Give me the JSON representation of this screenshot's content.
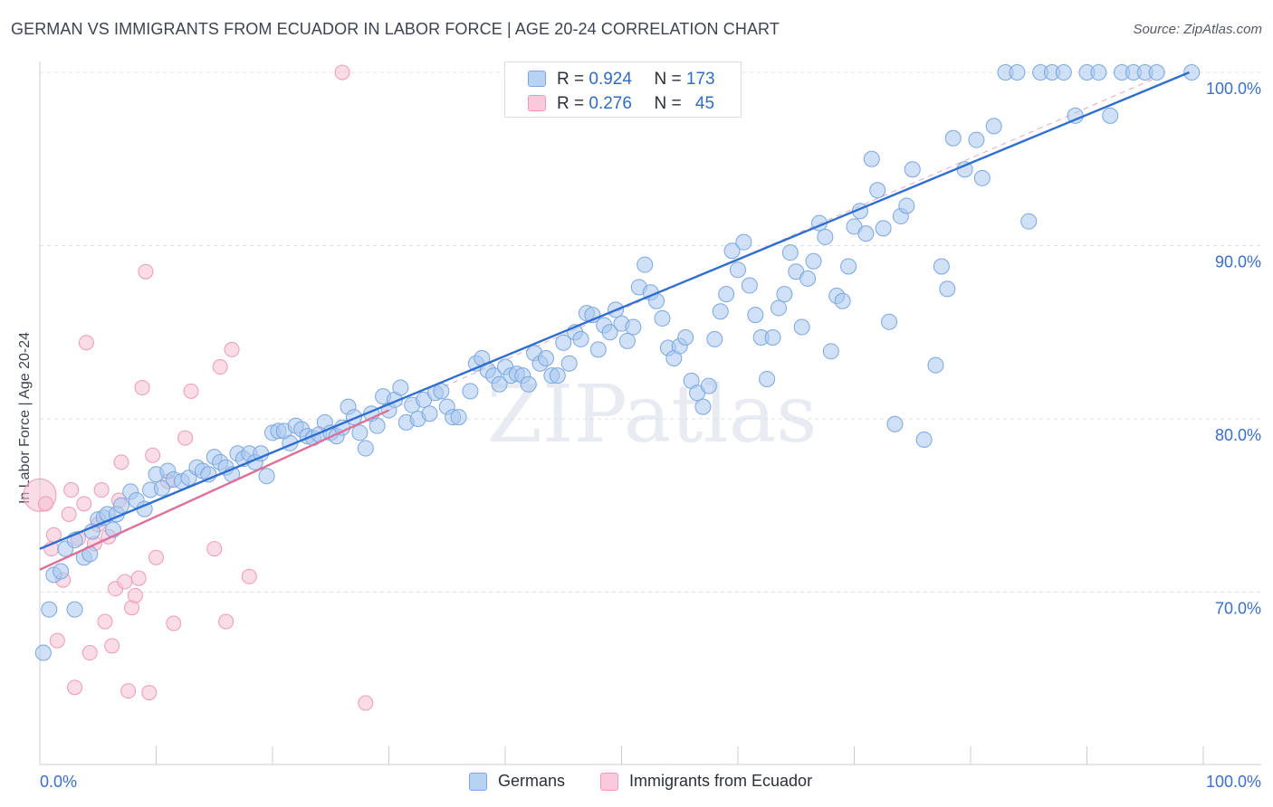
{
  "chart_title": "GERMAN VS IMMIGRANTS FROM ECUADOR IN LABOR FORCE | AGE 20-24 CORRELATION CHART",
  "source_text": "Source: ZipAtlas.com",
  "watermark": "ZIPatlas",
  "legend": {
    "r_label": "R =",
    "n_label": "N =",
    "entries": [
      {
        "r": "0.924",
        "n": "173"
      },
      {
        "r": "0.276",
        "n": "45"
      }
    ]
  },
  "colors": {
    "germans_fill": "#a9c8f0",
    "germans_stroke": "#7aa7e0",
    "germans_line": "#2f6ed1",
    "ecuador_fill": "#f6bfd1",
    "ecuador_stroke": "#ee9ab6",
    "ecuador_line": "#e06f98",
    "tick_label": "#3a6fc9",
    "grid": "#dde0e6"
  },
  "chart_data": {
    "type": "scatter",
    "title": "GERMAN VS IMMIGRANTS FROM ECUADOR IN LABOR FORCE | AGE 20-24 CORRELATION CHART",
    "xlabel": "",
    "ylabel": "In Labor Force | Age 20-24",
    "xlim": [
      0,
      100
    ],
    "ylim": [
      61,
      101
    ],
    "x_tick_labels": [
      "0.0%",
      "100.0%"
    ],
    "y_ticks": [
      70,
      80,
      90,
      100
    ],
    "y_tick_labels": [
      "70.0%",
      "80.0%",
      "90.0%",
      "100.0%"
    ],
    "grid": true,
    "legend_position": "top-center",
    "series": [
      {
        "name": "Germans",
        "r": 0.924,
        "n": 173,
        "trend": [
          [
            0,
            72.5
          ],
          [
            98.8,
            100
          ]
        ],
        "points": [
          [
            0.3,
            66.5
          ],
          [
            0.8,
            69.0
          ],
          [
            1.2,
            71.0
          ],
          [
            1.8,
            71.2
          ],
          [
            2.2,
            72.5
          ],
          [
            3.0,
            73.0
          ],
          [
            3.0,
            69.0
          ],
          [
            3.8,
            72.0
          ],
          [
            4.3,
            72.2
          ],
          [
            4.5,
            73.5
          ],
          [
            5.0,
            74.2
          ],
          [
            5.5,
            74.3
          ],
          [
            5.8,
            74.5
          ],
          [
            6.3,
            73.6
          ],
          [
            6.6,
            74.5
          ],
          [
            7.0,
            75.0
          ],
          [
            7.8,
            75.8
          ],
          [
            8.3,
            75.3
          ],
          [
            9.0,
            74.8
          ],
          [
            9.5,
            75.9
          ],
          [
            10.0,
            76.8
          ],
          [
            10.5,
            76.0
          ],
          [
            11.0,
            77.0
          ],
          [
            11.5,
            76.5
          ],
          [
            12.2,
            76.4
          ],
          [
            12.8,
            76.6
          ],
          [
            13.5,
            77.2
          ],
          [
            14.0,
            77.0
          ],
          [
            14.5,
            76.8
          ],
          [
            15.0,
            77.8
          ],
          [
            15.5,
            77.5
          ],
          [
            16.0,
            77.2
          ],
          [
            16.5,
            76.8
          ],
          [
            17.0,
            78.0
          ],
          [
            17.5,
            77.7
          ],
          [
            18.0,
            78.0
          ],
          [
            18.5,
            77.5
          ],
          [
            19.0,
            78.0
          ],
          [
            19.5,
            76.7
          ],
          [
            20.0,
            79.2
          ],
          [
            20.5,
            79.3
          ],
          [
            21.0,
            79.3
          ],
          [
            21.5,
            78.6
          ],
          [
            22.0,
            79.6
          ],
          [
            22.5,
            79.4
          ],
          [
            23.0,
            79.0
          ],
          [
            23.5,
            78.9
          ],
          [
            24.0,
            79.1
          ],
          [
            24.5,
            79.8
          ],
          [
            25.0,
            79.2
          ],
          [
            25.5,
            79.0
          ],
          [
            26.0,
            79.5
          ],
          [
            26.5,
            80.7
          ],
          [
            27.0,
            80.1
          ],
          [
            27.5,
            79.2
          ],
          [
            28.0,
            78.3
          ],
          [
            28.5,
            80.3
          ],
          [
            29.0,
            79.6
          ],
          [
            29.5,
            81.3
          ],
          [
            30.0,
            80.5
          ],
          [
            30.5,
            81.1
          ],
          [
            31.0,
            81.8
          ],
          [
            31.5,
            79.8
          ],
          [
            32.0,
            80.8
          ],
          [
            32.5,
            80.0
          ],
          [
            33.0,
            81.1
          ],
          [
            33.5,
            80.3
          ],
          [
            34.0,
            81.5
          ],
          [
            34.5,
            81.6
          ],
          [
            35.0,
            80.7
          ],
          [
            35.5,
            80.1
          ],
          [
            36.0,
            80.1
          ],
          [
            37.0,
            81.6
          ],
          [
            37.5,
            83.2
          ],
          [
            38.0,
            83.5
          ],
          [
            38.5,
            82.8
          ],
          [
            39.0,
            82.5
          ],
          [
            39.5,
            82.0
          ],
          [
            40.0,
            83.0
          ],
          [
            40.5,
            82.5
          ],
          [
            41.0,
            82.6
          ],
          [
            41.5,
            82.5
          ],
          [
            42.0,
            82.0
          ],
          [
            42.5,
            83.8
          ],
          [
            43.0,
            83.2
          ],
          [
            43.5,
            83.5
          ],
          [
            44.0,
            82.5
          ],
          [
            44.5,
            82.5
          ],
          [
            45.0,
            84.4
          ],
          [
            45.5,
            83.2
          ],
          [
            46.0,
            85.0
          ],
          [
            46.5,
            84.6
          ],
          [
            47.0,
            86.1
          ],
          [
            47.5,
            86.0
          ],
          [
            48.0,
            84.0
          ],
          [
            48.5,
            85.4
          ],
          [
            49.0,
            85.0
          ],
          [
            49.5,
            86.3
          ],
          [
            50.0,
            85.5
          ],
          [
            50.5,
            84.5
          ],
          [
            51.0,
            85.3
          ],
          [
            51.5,
            87.6
          ],
          [
            52.0,
            88.9
          ],
          [
            52.5,
            87.3
          ],
          [
            53.0,
            86.8
          ],
          [
            53.5,
            85.8
          ],
          [
            54.0,
            84.1
          ],
          [
            54.5,
            83.5
          ],
          [
            55.0,
            84.2
          ],
          [
            55.5,
            84.7
          ],
          [
            56.0,
            82.2
          ],
          [
            56.5,
            81.5
          ],
          [
            57.0,
            80.7
          ],
          [
            57.5,
            81.9
          ],
          [
            58.0,
            84.6
          ],
          [
            58.5,
            86.2
          ],
          [
            59.0,
            87.2
          ],
          [
            59.5,
            89.7
          ],
          [
            60.0,
            88.6
          ],
          [
            60.5,
            90.2
          ],
          [
            61.0,
            87.7
          ],
          [
            61.5,
            86.0
          ],
          [
            62.0,
            84.7
          ],
          [
            62.5,
            82.3
          ],
          [
            63.0,
            84.7
          ],
          [
            63.5,
            86.4
          ],
          [
            64.0,
            87.2
          ],
          [
            64.5,
            89.6
          ],
          [
            65.0,
            88.5
          ],
          [
            65.5,
            85.3
          ],
          [
            66.0,
            88.1
          ],
          [
            66.5,
            89.1
          ],
          [
            67.0,
            91.3
          ],
          [
            67.5,
            90.5
          ],
          [
            68.0,
            83.9
          ],
          [
            68.5,
            87.1
          ],
          [
            69.0,
            86.8
          ],
          [
            69.5,
            88.8
          ],
          [
            70.0,
            91.1
          ],
          [
            70.5,
            92.0
          ],
          [
            71.0,
            90.7
          ],
          [
            71.5,
            95.0
          ],
          [
            72.0,
            93.2
          ],
          [
            72.5,
            91.0
          ],
          [
            73.0,
            85.6
          ],
          [
            73.5,
            79.7
          ],
          [
            74.0,
            91.7
          ],
          [
            74.5,
            92.3
          ],
          [
            75.0,
            94.4
          ],
          [
            76.0,
            78.8
          ],
          [
            77.0,
            83.1
          ],
          [
            77.5,
            88.8
          ],
          [
            78.0,
            87.5
          ],
          [
            78.5,
            96.2
          ],
          [
            79.5,
            94.4
          ],
          [
            80.5,
            96.1
          ],
          [
            81.0,
            93.9
          ],
          [
            82.0,
            96.9
          ],
          [
            83.0,
            100.0
          ],
          [
            84.0,
            100.0
          ],
          [
            85.0,
            91.4
          ],
          [
            86.0,
            100.0
          ],
          [
            87.0,
            100.0
          ],
          [
            88.0,
            100.0
          ],
          [
            89.0,
            97.5
          ],
          [
            90.0,
            100.0
          ],
          [
            91.0,
            100.0
          ],
          [
            92.0,
            97.5
          ],
          [
            93.0,
            100.0
          ],
          [
            94.0,
            100.0
          ],
          [
            95.0,
            100.0
          ],
          [
            96.0,
            100.0
          ],
          [
            99.0,
            100.0
          ]
        ]
      },
      {
        "name": "Immigrants from Ecuador",
        "r": 0.276,
        "n": 45,
        "trend": [
          [
            0,
            71.3
          ],
          [
            30,
            80.5
          ]
        ],
        "points": [
          [
            0.0,
            75.6
          ],
          [
            0.5,
            75.1
          ],
          [
            1.0,
            72.5
          ],
          [
            1.2,
            73.3
          ],
          [
            1.5,
            67.2
          ],
          [
            2.0,
            70.7
          ],
          [
            2.5,
            74.5
          ],
          [
            2.7,
            75.9
          ],
          [
            3.0,
            64.5
          ],
          [
            3.3,
            73.1
          ],
          [
            3.8,
            75.1
          ],
          [
            4.0,
            84.4
          ],
          [
            4.3,
            66.5
          ],
          [
            4.7,
            72.8
          ],
          [
            5.0,
            73.9
          ],
          [
            5.3,
            75.9
          ],
          [
            5.6,
            68.3
          ],
          [
            5.9,
            73.2
          ],
          [
            6.2,
            66.9
          ],
          [
            6.5,
            70.2
          ],
          [
            6.8,
            75.3
          ],
          [
            7.0,
            77.5
          ],
          [
            7.3,
            70.6
          ],
          [
            7.6,
            64.3
          ],
          [
            7.9,
            69.1
          ],
          [
            8.2,
            69.8
          ],
          [
            8.5,
            70.8
          ],
          [
            8.8,
            81.8
          ],
          [
            9.1,
            88.5
          ],
          [
            9.4,
            64.2
          ],
          [
            9.7,
            77.9
          ],
          [
            10.0,
            72.0
          ],
          [
            11.0,
            76.4
          ],
          [
            11.5,
            68.2
          ],
          [
            12.5,
            78.9
          ],
          [
            13.0,
            81.6
          ],
          [
            15.0,
            72.5
          ],
          [
            15.5,
            83.0
          ],
          [
            16.0,
            68.3
          ],
          [
            16.5,
            84.0
          ],
          [
            18.0,
            70.9
          ],
          [
            26.0,
            100.0
          ],
          [
            28.0,
            63.6
          ]
        ]
      }
    ]
  }
}
